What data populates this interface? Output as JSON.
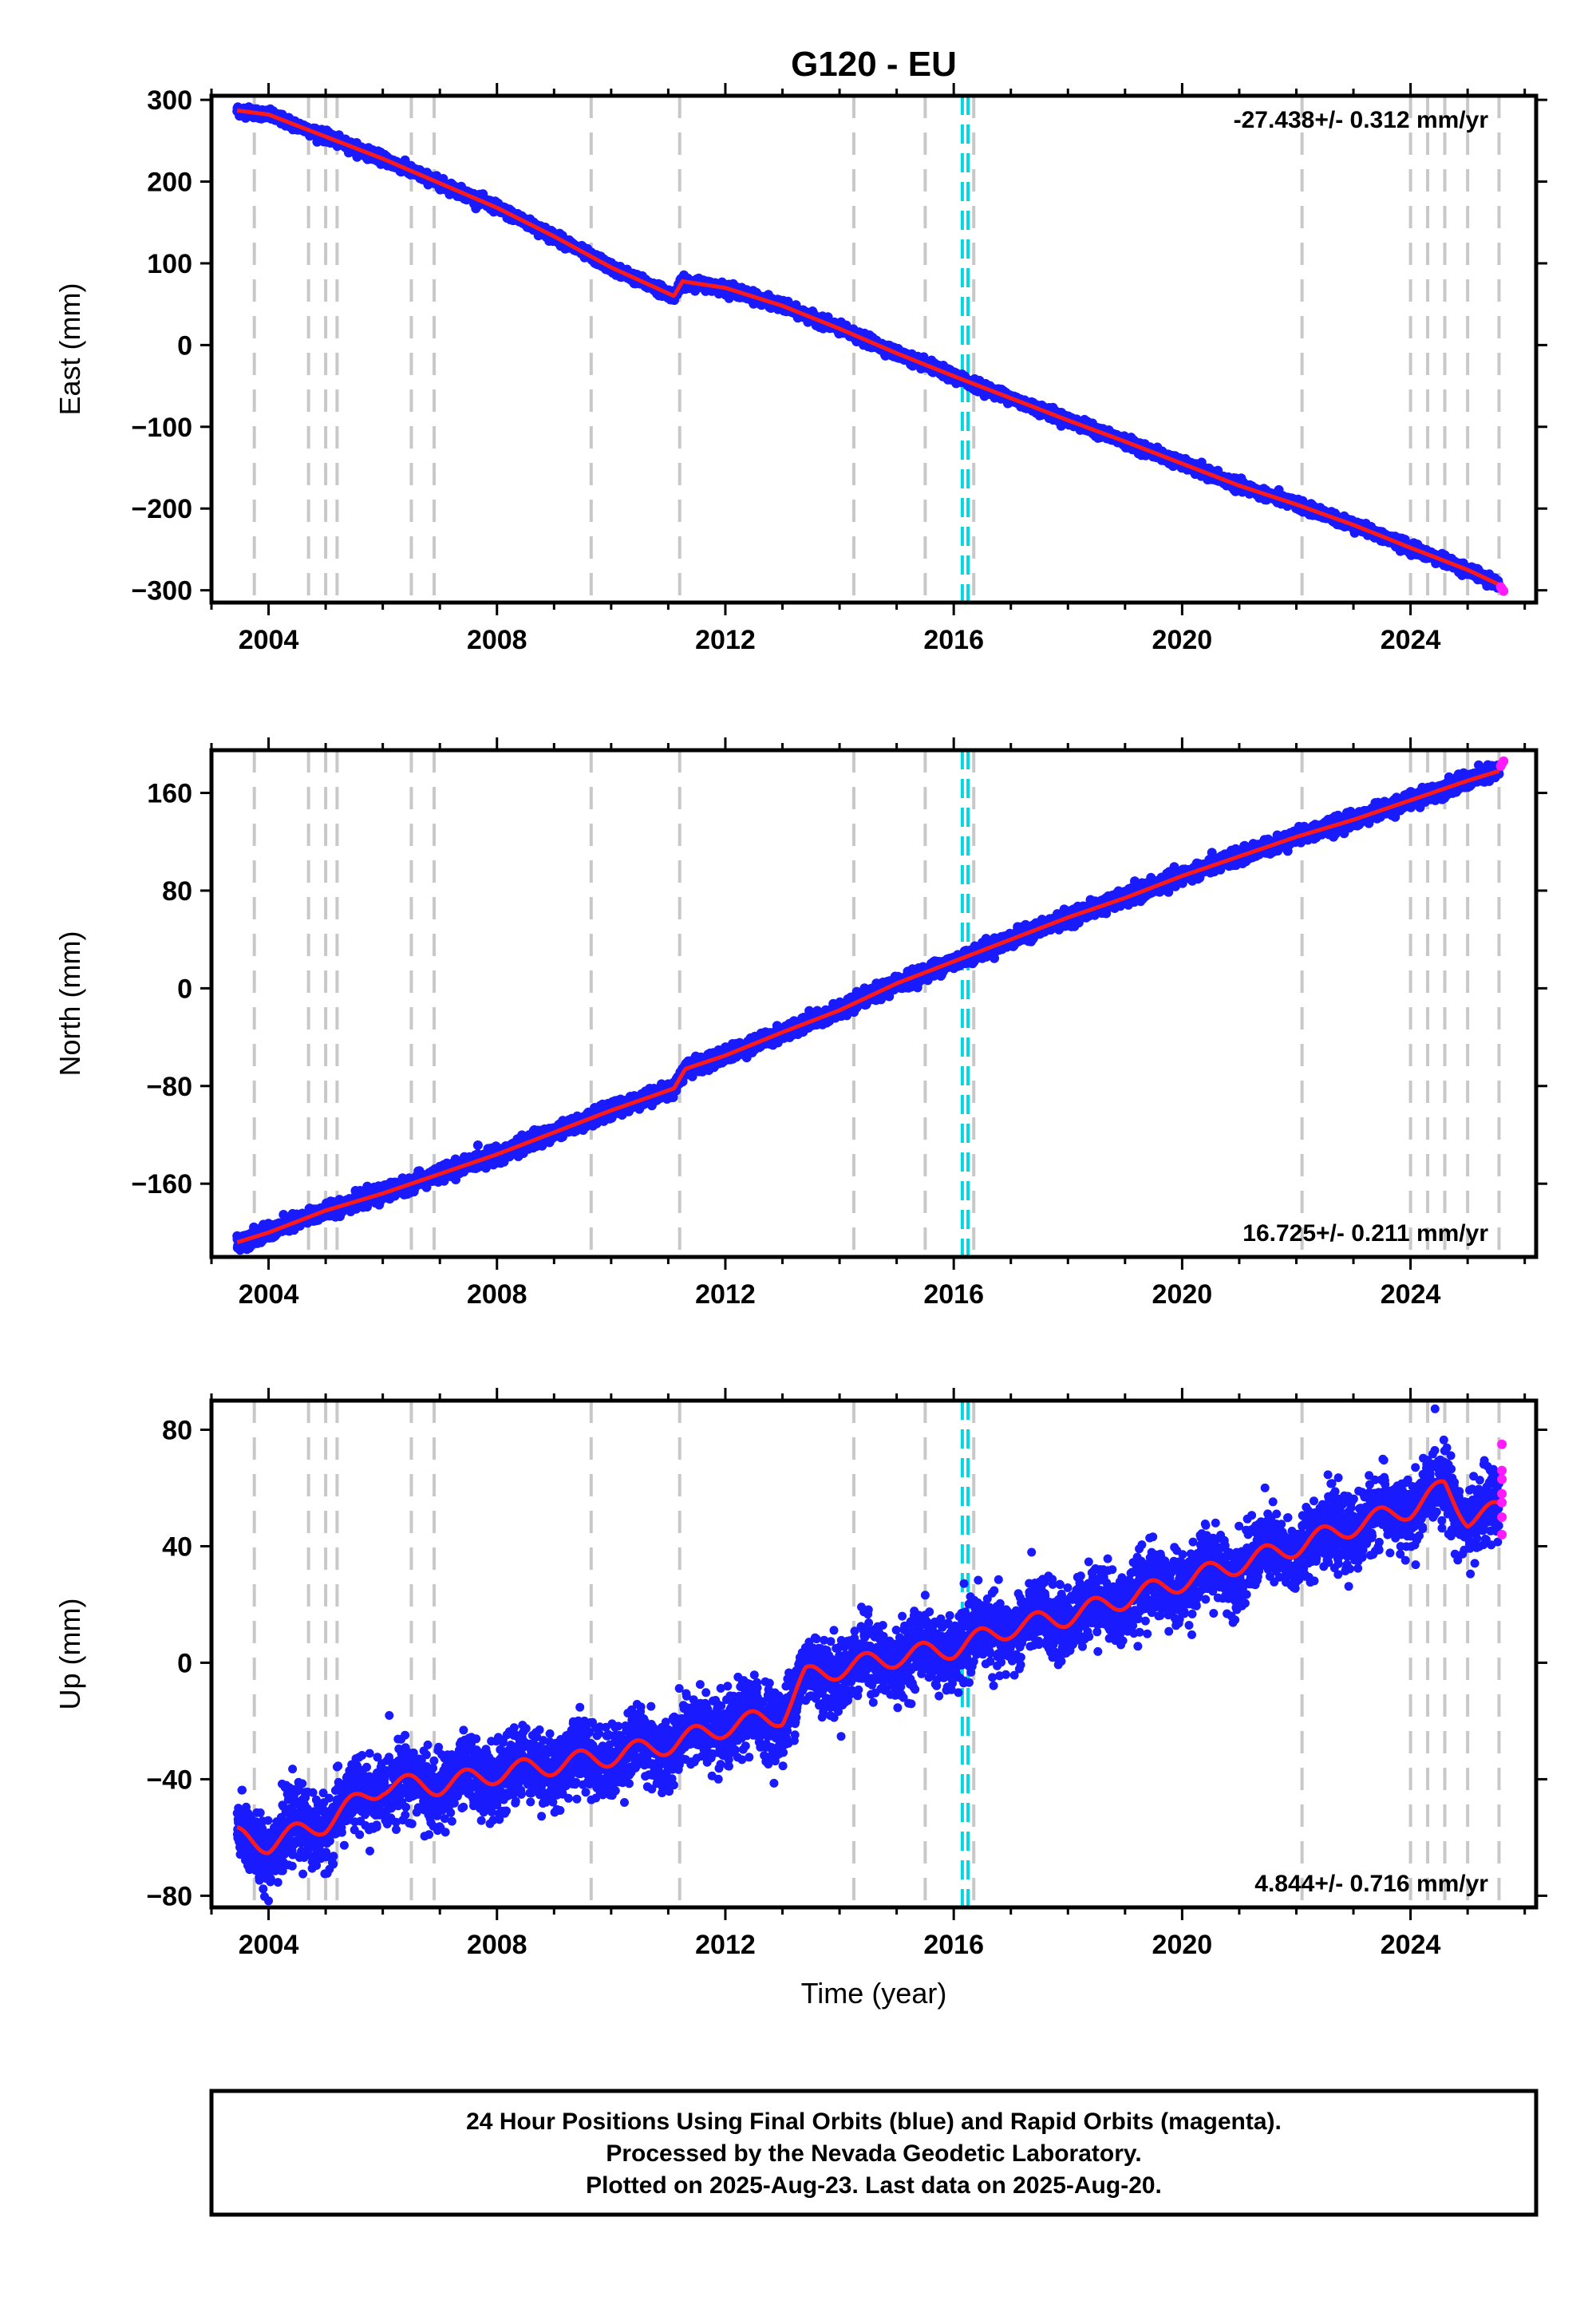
{
  "title": "G120 - EU",
  "colors": {
    "final_orbits": "#1a1aff",
    "rapid_orbits": "#ff1aff",
    "model_fit": "#ff1a1a",
    "equipment_change_line": "#c8c8c8",
    "earthquake_line": "#00d8e0"
  },
  "xaxis": {
    "label": "Time (year)",
    "ticks": [
      2004,
      2008,
      2012,
      2016,
      2020,
      2024
    ]
  },
  "footer": {
    "line1": "24 Hour Positions Using Final Orbits (blue) and Rapid Orbits (magenta).",
    "line2": "Processed by the Nevada Geodetic Laboratory.",
    "line3": "Plotted on 2025-Aug-23. Last data on 2025-Aug-20."
  },
  "chart_data": [
    {
      "type": "scatter",
      "component": "east",
      "ylabel": "East (mm)",
      "xlim": [
        2003.0,
        2026.2
      ],
      "ylim": [
        -315,
        305
      ],
      "yticks": [
        300,
        200,
        100,
        0,
        -100,
        -200,
        -300
      ],
      "rate_text": "-27.438+/- 0.312 mm/yr",
      "rate_position": "top-right",
      "gray_dashed_lines": [
        2003.75,
        2004.7,
        2005.0,
        2005.2,
        2006.5,
        2006.9,
        2009.65,
        2011.2,
        2014.25,
        2015.5,
        2016.35,
        2022.1,
        2024.0,
        2024.3,
        2024.6,
        2025.0,
        2025.55
      ],
      "cyan_dashed_lines": [
        2016.15,
        2016.25
      ],
      "series": [
        {
          "name": "Final Orbits (blue)",
          "points": [
            [
              2003.45,
              287
            ],
            [
              2004.0,
              282
            ],
            [
              2005.0,
              255
            ],
            [
              2006.0,
              228
            ],
            [
              2007.0,
              198
            ],
            [
              2008.0,
              168
            ],
            [
              2009.0,
              133
            ],
            [
              2010.0,
              95
            ],
            [
              2011.1,
              60
            ],
            [
              2011.25,
              78
            ],
            [
              2012.0,
              70
            ],
            [
              2013.0,
              48
            ],
            [
              2014.0,
              20
            ],
            [
              2015.0,
              -10
            ],
            [
              2016.0,
              -38
            ],
            [
              2017.0,
              -65
            ],
            [
              2018.0,
              -92
            ],
            [
              2019.0,
              -118
            ],
            [
              2020.0,
              -145
            ],
            [
              2021.0,
              -172
            ],
            [
              2022.0,
              -195
            ],
            [
              2023.0,
              -220
            ],
            [
              2024.0,
              -248
            ],
            [
              2025.0,
              -275
            ],
            [
              2025.55,
              -293
            ]
          ],
          "scatter_mm": 3
        },
        {
          "name": "Rapid Orbits (magenta)",
          "points": [
            [
              2025.58,
              -296
            ],
            [
              2025.6,
              -298
            ],
            [
              2025.63,
              -301
            ]
          ]
        }
      ]
    },
    {
      "type": "scatter",
      "component": "north",
      "ylabel": "North (mm)",
      "xlim": [
        2003.0,
        2026.2
      ],
      "ylim": [
        -220,
        195
      ],
      "yticks": [
        160,
        80,
        0,
        -80,
        -160
      ],
      "rate_text": "16.725+/- 0.211 mm/yr",
      "rate_position": "bottom-right",
      "gray_dashed_lines": [
        2003.75,
        2004.7,
        2005.0,
        2005.2,
        2006.5,
        2006.9,
        2009.65,
        2011.2,
        2014.25,
        2015.5,
        2016.35,
        2022.1,
        2024.0,
        2024.3,
        2024.6,
        2025.0,
        2025.55
      ],
      "cyan_dashed_lines": [
        2016.15,
        2016.25
      ],
      "series": [
        {
          "name": "Final Orbits (blue)",
          "points": [
            [
              2003.45,
              -208
            ],
            [
              2004.0,
              -200
            ],
            [
              2005.0,
              -182
            ],
            [
              2006.0,
              -168
            ],
            [
              2007.0,
              -152
            ],
            [
              2008.0,
              -136
            ],
            [
              2009.0,
              -118
            ],
            [
              2010.0,
              -100
            ],
            [
              2011.1,
              -82
            ],
            [
              2011.3,
              -66
            ],
            [
              2012.0,
              -55
            ],
            [
              2013.0,
              -36
            ],
            [
              2014.0,
              -18
            ],
            [
              2015.0,
              4
            ],
            [
              2016.0,
              22
            ],
            [
              2017.0,
              40
            ],
            [
              2018.0,
              58
            ],
            [
              2019.0,
              74
            ],
            [
              2020.0,
              92
            ],
            [
              2021.0,
              108
            ],
            [
              2022.0,
              124
            ],
            [
              2023.0,
              138
            ],
            [
              2024.0,
              154
            ],
            [
              2025.0,
              170
            ],
            [
              2025.55,
              178
            ]
          ],
          "scatter_mm": 3
        },
        {
          "name": "Rapid Orbits (magenta)",
          "points": [
            [
              2025.58,
              182
            ],
            [
              2025.6,
              184
            ],
            [
              2025.63,
              186
            ]
          ]
        }
      ]
    },
    {
      "type": "scatter",
      "component": "up",
      "ylabel": "Up (mm)",
      "xlim": [
        2003.0,
        2026.2
      ],
      "ylim": [
        -84,
        90
      ],
      "yticks": [
        80,
        40,
        0,
        -40,
        -80
      ],
      "rate_text": "4.844+/- 0.716 mm/yr",
      "rate_position": "bottom-right",
      "gray_dashed_lines": [
        2003.75,
        2004.7,
        2005.0,
        2005.2,
        2006.5,
        2006.9,
        2009.65,
        2011.2,
        2014.25,
        2015.5,
        2016.35,
        2022.1,
        2024.0,
        2024.3,
        2024.6,
        2025.0,
        2025.55
      ],
      "cyan_dashed_lines": [
        2016.15,
        2016.25
      ],
      "series": [
        {
          "name": "Final Orbits (blue)",
          "points": [
            [
              2003.45,
              -60
            ],
            [
              2004.0,
              -62
            ],
            [
              2005.0,
              -55
            ],
            [
              2006.0,
              -42
            ],
            [
              2007.0,
              -42
            ],
            [
              2008.0,
              -38
            ],
            [
              2009.0,
              -35
            ],
            [
              2010.0,
              -32
            ],
            [
              2011.0,
              -28
            ],
            [
              2012.0,
              -22
            ],
            [
              2013.0,
              -18
            ],
            [
              2013.4,
              -5
            ],
            [
              2014.0,
              -2
            ],
            [
              2015.0,
              2
            ],
            [
              2016.0,
              5
            ],
            [
              2017.0,
              12
            ],
            [
              2018.0,
              16
            ],
            [
              2019.0,
              22
            ],
            [
              2020.0,
              28
            ],
            [
              2021.0,
              34
            ],
            [
              2022.0,
              40
            ],
            [
              2023.0,
              47
            ],
            [
              2024.0,
              53
            ],
            [
              2024.6,
              60
            ],
            [
              2025.0,
              50
            ],
            [
              2025.55,
              52
            ]
          ],
          "scatter_mm": 6,
          "seasonal_amplitude_mm": 3.5
        },
        {
          "name": "Rapid Orbits (magenta)",
          "points": [
            [
              2025.6,
              75
            ],
            [
              2025.6,
              66
            ],
            [
              2025.6,
              63
            ],
            [
              2025.6,
              58
            ],
            [
              2025.6,
              55
            ],
            [
              2025.6,
              50
            ],
            [
              2025.6,
              44
            ]
          ]
        }
      ]
    }
  ]
}
